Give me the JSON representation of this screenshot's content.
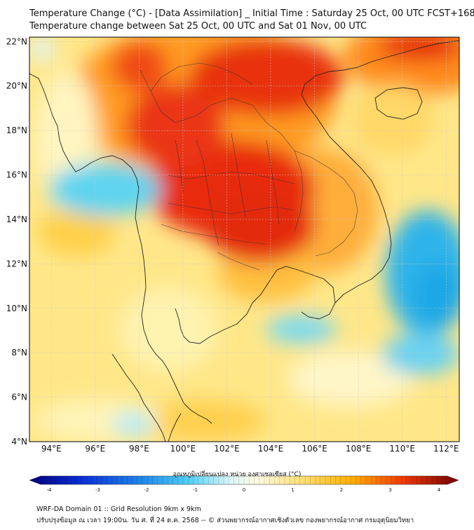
{
  "title_line1": "Temperature Change (°C) - [Data Assimilation] _ Initial Time : Saturday 25 Oct, 00 UTC FCST+168",
  "title_line2": "Temperature change between Sat 25 Oct, 00 UTC and Sat 01 Nov, 00 UTC",
  "lat_labels": [
    "22°N",
    "20°N",
    "18°N",
    "16°N",
    "14°N",
    "12°N",
    "10°N",
    "8°N",
    "6°N",
    "4°N"
  ],
  "lon_labels": [
    "94°E",
    "96°E",
    "98°E",
    "100°E",
    "102°E",
    "104°E",
    "106°E",
    "108°E",
    "110°E",
    "112°E"
  ],
  "colorbar": {
    "label": "อุณหภูมิเปลี่ยนแปลง หน่วย องศาเซลเซียส (°C)",
    "ticks": [
      "-4",
      "-3",
      "-2",
      "-1",
      "0",
      "1",
      "2",
      "3",
      "4"
    ],
    "min": -4,
    "max": 4
  },
  "footer_line1": "WRF-DA Domain 01 :: Grid Resolution 9km x 9km",
  "footer_line2": "ปรับปรุงข้อมูล ณ เวลา 19:00น. วัน ศ. ที่ 24 ต.ค. 2568 -- © ส่วนพยากรณ์อากาศเชิงตัวเลข กองพยากรณ์อากาศ กรมอุตุนิยมวิทยา",
  "colors": {
    "hot": "#e82c10",
    "warm": "#ff8a1e",
    "mild": "#ffd34a",
    "pale": "#fff2a8",
    "cool": "#5fd4f0",
    "cold": "#1aa7e6",
    "coast": "#222222"
  }
}
